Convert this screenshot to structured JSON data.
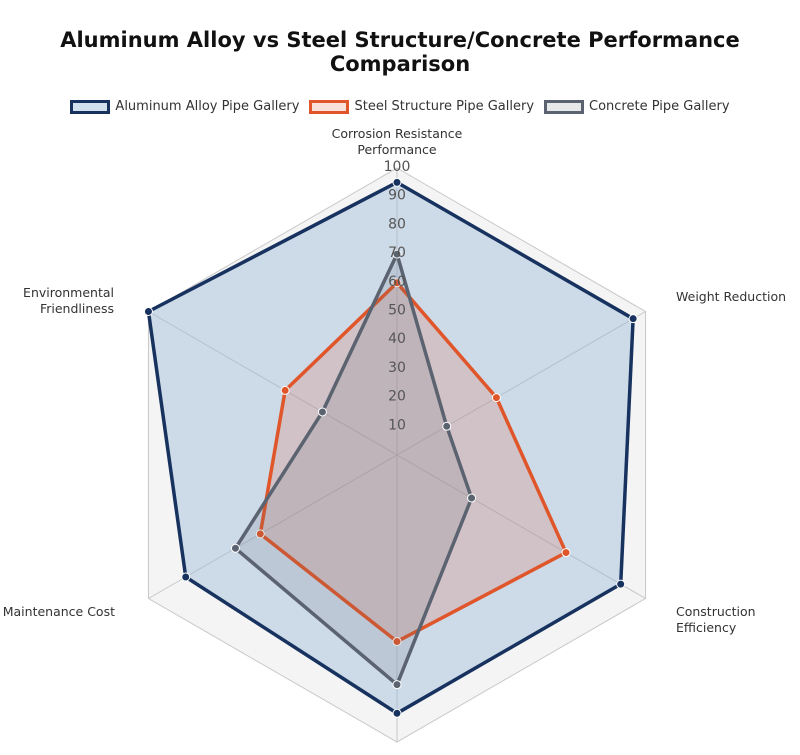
{
  "chart_data": {
    "type": "radar",
    "title": "Aluminum Alloy vs Steel Structure/Concrete Performance Comparison",
    "categories": [
      "Corrosion Resistance Performance",
      "Weight Reduction",
      "Construction Efficiency",
      null,
      "Maintenance Cost",
      "Environmental Friendliness"
    ],
    "series": [
      {
        "name": "Aluminum Alloy Pipe Gallery",
        "color": "#17325e",
        "values": [
          95,
          95,
          90,
          90,
          85,
          100
        ]
      },
      {
        "name": "Steel Structure Pipe Gallery",
        "color": "#e0562a",
        "values": [
          60,
          40,
          68,
          65,
          55,
          45
        ]
      },
      {
        "name": "Concrete Pipe Gallery",
        "color": "#5b6370",
        "values": [
          70,
          20,
          30,
          80,
          65,
          30
        ]
      }
    ],
    "ylim": [
      0,
      100
    ],
    "yticks": [
      10,
      20,
      30,
      40,
      50,
      60,
      70,
      80,
      90,
      100
    ],
    "grid": true
  }
}
